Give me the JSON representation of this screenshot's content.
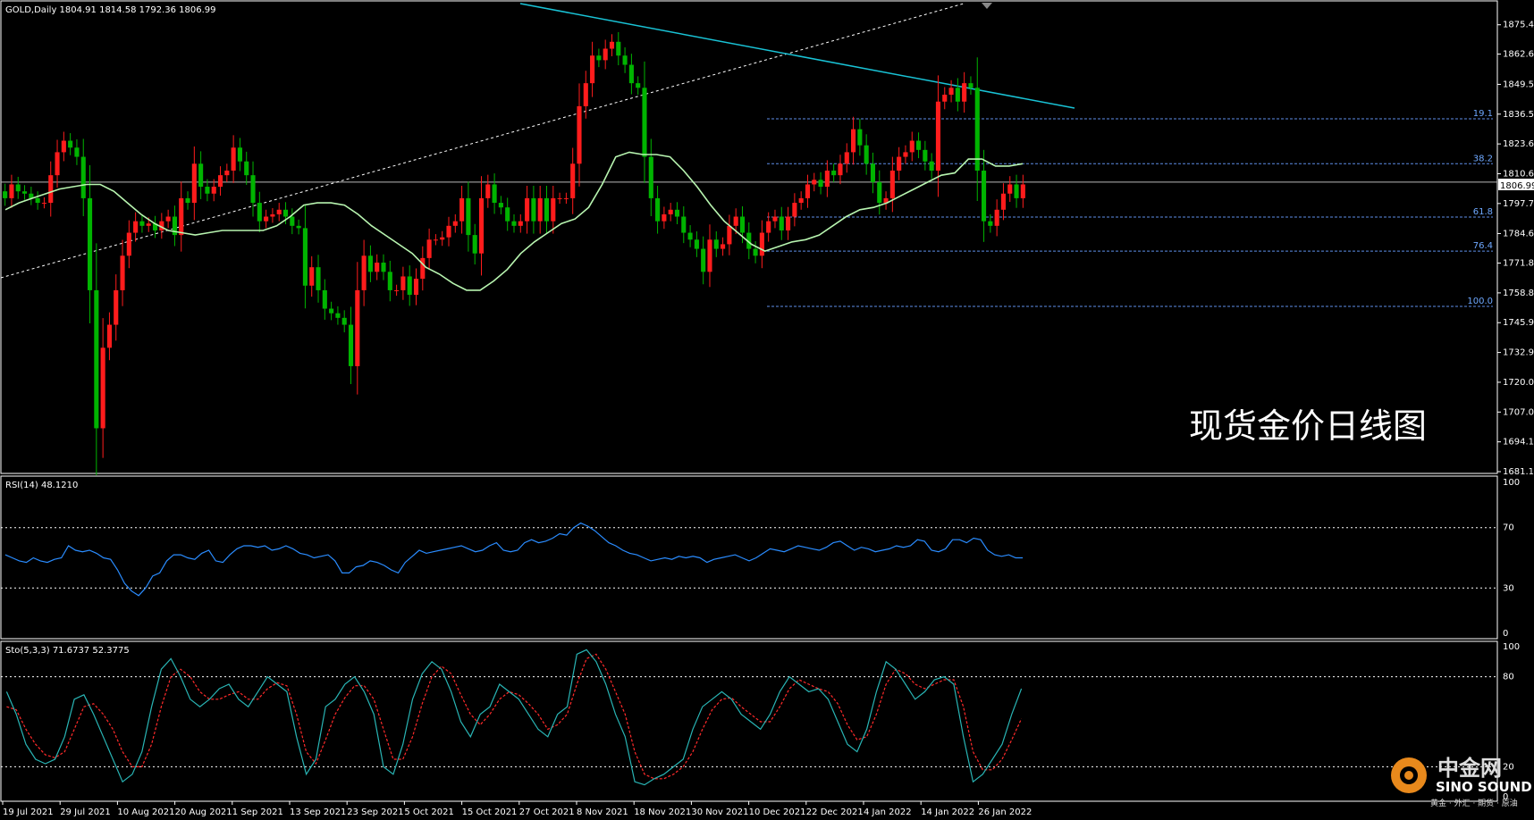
{
  "symbol_header": "GOLD,Daily  1804.91 1814.58 1792.36 1806.99",
  "price_badge": "1806.99",
  "watermark_title": "现货金价日线图",
  "logo": {
    "cn": "中金网",
    "en": "SINO SOUND",
    "tagline": "黄金 · 外汇 · 期货 · 原油"
  },
  "rsi_header": "RSI(14) 48.1210",
  "sto_header": "Sto(5,3,3) 71.6737 52.3775",
  "colors": {
    "bull": "#00b400",
    "bear": "#ff1c1c",
    "ma": "#b8f5b0",
    "rsi": "#2a8cff",
    "sto_main": "#29b5b5",
    "sto_signal": "#ff2a2a",
    "trendline": "#19c3d6",
    "fib": "#5e8ee8",
    "grid": "#ffffff"
  },
  "chart_data": [
    {
      "type": "candlestick",
      "title": "现货金价日线图",
      "y_ticks": [
        "1875.40",
        "1862.65",
        "1849.50",
        "1836.55",
        "1823.60",
        "1810.65",
        "1797.70",
        "1784.65",
        "1771.80",
        "1758.85",
        "1745.90",
        "1732.95",
        "1720.00",
        "1707.05",
        "1694.10",
        "1681.15"
      ],
      "x_labels": [
        "19 Jul 2021",
        "29 Jul 2021",
        "10 Aug 2021",
        "20 Aug 2021",
        "1 Sep 2021",
        "13 Sep 2021",
        "23 Sep 2021",
        "5 Oct 2021",
        "15 Oct 2021",
        "27 Oct 2021",
        "8 Nov 2021",
        "18 Nov 2021",
        "30 Nov 2021",
        "10 Dec 2021",
        "22 Dec 2021",
        "4 Jan 2022",
        "14 Jan 2022",
        "26 Jan 2022"
      ],
      "ylim": [
        1681.15,
        1885
      ],
      "last_close": 1806.99,
      "fib_levels": [
        {
          "label": "19.1",
          "price": 1834.5
        },
        {
          "label": "38.2",
          "price": 1815.0
        },
        {
          "label": "61.8",
          "price": 1791.8
        },
        {
          "label": "76.4",
          "price": 1777.0
        },
        {
          "label": "100.0",
          "price": 1753.0
        }
      ],
      "close_series": [
        1800,
        1806,
        1803,
        1802,
        1800,
        1798,
        1798,
        1810,
        1820,
        1825,
        1822,
        1818,
        1800,
        1760,
        1700,
        1735,
        1745,
        1760,
        1775,
        1785,
        1790,
        1788,
        1789,
        1786,
        1790,
        1792,
        1784,
        1800,
        1798,
        1815,
        1805,
        1802,
        1805,
        1810,
        1812,
        1822,
        1816,
        1810,
        1798,
        1790,
        1792,
        1793,
        1795,
        1792,
        1788,
        1787,
        1762,
        1770,
        1760,
        1752,
        1750,
        1748,
        1745,
        1727,
        1760,
        1775,
        1768,
        1772,
        1768,
        1760,
        1760,
        1766,
        1758,
        1765,
        1774,
        1782,
        1782,
        1783,
        1788,
        1790,
        1800,
        1784,
        1776,
        1800,
        1806,
        1798,
        1796,
        1790,
        1788,
        1790,
        1800,
        1790,
        1800,
        1790,
        1800,
        1800,
        1800,
        1815,
        1840,
        1850,
        1862,
        1860,
        1865,
        1868,
        1862,
        1858,
        1850,
        1848,
        1818,
        1800,
        1790,
        1793,
        1795,
        1792,
        1785,
        1782,
        1778,
        1768,
        1782,
        1778,
        1780,
        1788,
        1792,
        1785,
        1778,
        1775,
        1785,
        1790,
        1792,
        1786,
        1792,
        1798,
        1800,
        1806,
        1808,
        1805,
        1812,
        1810,
        1815,
        1820,
        1830,
        1823,
        1815,
        1807,
        1798,
        1800,
        1812,
        1818,
        1820,
        1825,
        1821,
        1816,
        1812,
        1842,
        1845,
        1848,
        1842,
        1850,
        1848,
        1812,
        1790,
        1788,
        1795,
        1802,
        1806,
        1800,
        1806
      ],
      "ma_label": "MA(20)",
      "ma_series": [
        1795,
        1798,
        1800,
        1802,
        1804,
        1805,
        1806,
        1806,
        1803,
        1798,
        1793,
        1789,
        1786,
        1785,
        1784,
        1785,
        1786,
        1786,
        1786,
        1786,
        1788,
        1792,
        1797,
        1798,
        1798,
        1797,
        1793,
        1788,
        1784,
        1780,
        1776,
        1770,
        1767,
        1763,
        1760,
        1760,
        1764,
        1769,
        1776,
        1781,
        1785,
        1789,
        1791,
        1796,
        1806,
        1818,
        1820,
        1819,
        1819,
        1818,
        1812,
        1805,
        1797,
        1790,
        1785,
        1780,
        1777,
        1779,
        1781,
        1782,
        1784,
        1788,
        1792,
        1795,
        1796,
        1798,
        1801,
        1804,
        1807,
        1810,
        1811,
        1817,
        1817,
        1814,
        1814,
        1815
      ],
      "trendline_desc": {
        "from": "8 Nov 2021",
        "to": "26 Jan 2022"
      }
    },
    {
      "type": "line",
      "title": "RSI(14) 48.1210",
      "ylim": [
        0,
        100
      ],
      "y_ticks": [
        "100",
        "70",
        "30",
        "0"
      ],
      "levels": [
        70,
        30
      ],
      "values": [
        52,
        50,
        48,
        47,
        50,
        48,
        47,
        49,
        50,
        58,
        55,
        54,
        55,
        53,
        50,
        49,
        42,
        33,
        28,
        25,
        30,
        38,
        40,
        48,
        52,
        52,
        50,
        49,
        53,
        55,
        48,
        47,
        52,
        56,
        58,
        58,
        57,
        58,
        55,
        56,
        58,
        56,
        53,
        52,
        50,
        51,
        52,
        48,
        40,
        40,
        44,
        45,
        48,
        47,
        45,
        42,
        40,
        47,
        51,
        55,
        53,
        54,
        55,
        56,
        57,
        58,
        56,
        54,
        55,
        58,
        60,
        55,
        54,
        55,
        60,
        62,
        60,
        61,
        63,
        66,
        65,
        70,
        73,
        71,
        68,
        64,
        60,
        58,
        55,
        53,
        52,
        50,
        48,
        49,
        50,
        49,
        51,
        50,
        51,
        50,
        47,
        49,
        50,
        51,
        52,
        50,
        48,
        50,
        53,
        56,
        55,
        54,
        56,
        58,
        57,
        56,
        55,
        57,
        60,
        61,
        58,
        55,
        57,
        56,
        54,
        55,
        56,
        58,
        57,
        58,
        62,
        61,
        55,
        54,
        56,
        62,
        62,
        60,
        63,
        62,
        55,
        52,
        51,
        52,
        50,
        50
      ],
      "last": 48.121
    },
    {
      "type": "line",
      "title": "Sto(5,3,3) 71.6737 52.3775",
      "ylim": [
        0,
        100
      ],
      "y_ticks": [
        "100",
        "80",
        "20",
        "0"
      ],
      "levels": [
        80,
        20
      ],
      "series": [
        {
          "name": "Sto(5,3,3)",
          "values": [
            70,
            55,
            35,
            25,
            22,
            25,
            40,
            65,
            68,
            55,
            40,
            25,
            10,
            15,
            30,
            60,
            85,
            92,
            80,
            65,
            60,
            65,
            72,
            75,
            65,
            60,
            70,
            80,
            75,
            70,
            40,
            15,
            25,
            60,
            65,
            75,
            80,
            70,
            55,
            20,
            15,
            35,
            65,
            82,
            90,
            85,
            70,
            50,
            40,
            55,
            60,
            75,
            70,
            65,
            55,
            45,
            40,
            55,
            60,
            95,
            98,
            90,
            75,
            55,
            40,
            10,
            8,
            12,
            15,
            20,
            25,
            45,
            60,
            65,
            70,
            65,
            55,
            50,
            45,
            55,
            70,
            80,
            75,
            70,
            72,
            65,
            50,
            35,
            30,
            45,
            70,
            90,
            85,
            75,
            65,
            70,
            78,
            80,
            75,
            40,
            10,
            15,
            25,
            35,
            55,
            72
          ]
        },
        {
          "name": "signal",
          "values": [
            60,
            58,
            45,
            35,
            28,
            26,
            30,
            45,
            60,
            62,
            55,
            45,
            30,
            20,
            20,
            35,
            60,
            80,
            85,
            80,
            70,
            65,
            65,
            68,
            70,
            65,
            65,
            72,
            76,
            74,
            55,
            30,
            22,
            38,
            55,
            66,
            74,
            74,
            65,
            45,
            25,
            25,
            40,
            62,
            80,
            87,
            82,
            68,
            55,
            48,
            55,
            65,
            70,
            68,
            62,
            55,
            45,
            48,
            55,
            75,
            92,
            95,
            85,
            70,
            55,
            30,
            15,
            12,
            12,
            15,
            20,
            30,
            45,
            58,
            65,
            66,
            60,
            55,
            50,
            50,
            60,
            72,
            78,
            75,
            72,
            70,
            62,
            48,
            38,
            40,
            55,
            75,
            85,
            82,
            75,
            72,
            75,
            78,
            78,
            60,
            30,
            18,
            18,
            25,
            38,
            52
          ]
        }
      ],
      "last": [
        71.6737,
        52.3775
      ]
    }
  ]
}
